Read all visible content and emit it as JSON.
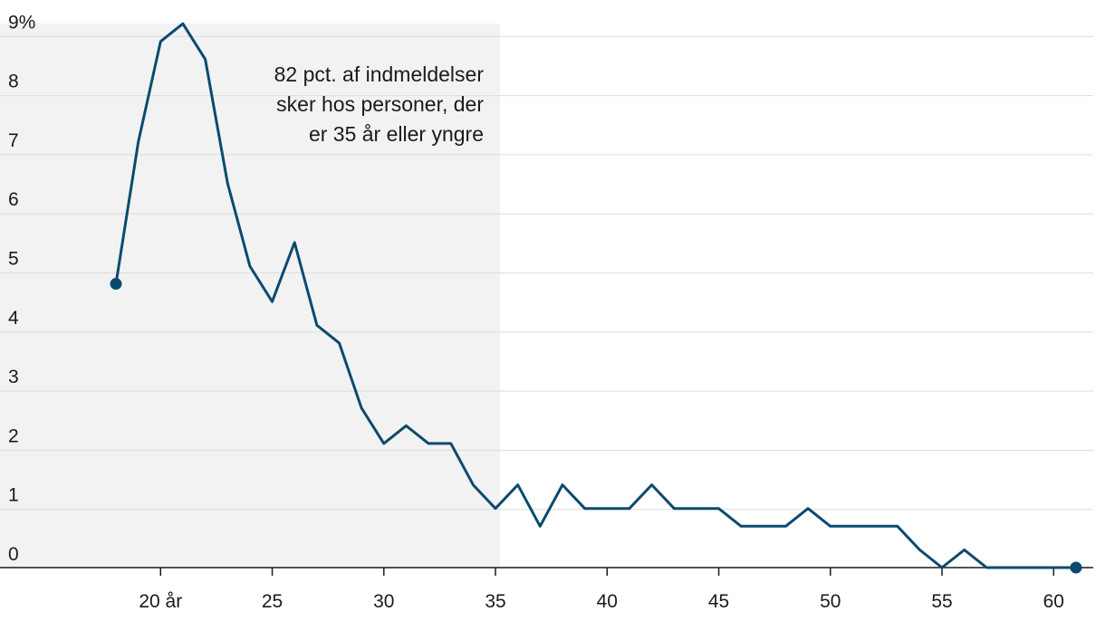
{
  "chart_data": {
    "type": "line",
    "title": "",
    "xlabel": "",
    "ylabel": "",
    "xlim": [
      18,
      61
    ],
    "ylim": [
      0,
      9
    ],
    "grid": true,
    "y_ticks": [
      0,
      1,
      2,
      3,
      4,
      5,
      6,
      7,
      8,
      9
    ],
    "y_tick_labels": [
      "0",
      "1",
      "2",
      "3",
      "4",
      "5",
      "6",
      "7",
      "8",
      "9%"
    ],
    "x_ticks": [
      20,
      25,
      30,
      35,
      40,
      45,
      50,
      55,
      60
    ],
    "x_tick_labels": [
      "20 år",
      "25",
      "30",
      "35",
      "40",
      "45",
      "50",
      "55",
      "60"
    ],
    "highlight_region": {
      "x_from": 16,
      "x_to": 35
    },
    "annotation": [
      "82 pct. af indmeldelser",
      "sker hos personer, der",
      "er 35 år eller yngre"
    ],
    "line_color": "#0b4a6f",
    "shade_color": "#f2f2f2",
    "x": [
      18,
      19,
      20,
      21,
      22,
      23,
      24,
      25,
      26,
      27,
      28,
      29,
      30,
      31,
      32,
      33,
      34,
      35,
      36,
      37,
      38,
      39,
      40,
      41,
      42,
      43,
      44,
      45,
      46,
      47,
      48,
      49,
      50,
      51,
      52,
      53,
      54,
      55,
      56,
      57,
      58,
      59,
      60,
      61
    ],
    "values": [
      4.8,
      7.2,
      8.9,
      9.2,
      8.6,
      6.5,
      5.1,
      4.5,
      5.5,
      4.1,
      3.8,
      2.7,
      2.1,
      2.4,
      2.1,
      2.1,
      1.4,
      1.0,
      1.4,
      0.7,
      1.4,
      1.0,
      1.0,
      1.0,
      1.4,
      1.0,
      1.0,
      1.0,
      0.7,
      0.7,
      0.7,
      1.0,
      0.7,
      0.7,
      0.7,
      0.7,
      0.3,
      0.0,
      0.3,
      0.0,
      0.0,
      0.0,
      0.0,
      0.0
    ],
    "endpoint_markers": true
  }
}
